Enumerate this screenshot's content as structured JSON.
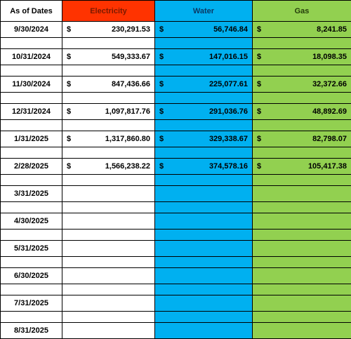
{
  "headers": {
    "date": "As of Dates",
    "electricity": "Electricity",
    "water": "Water",
    "gas": "Gas"
  },
  "currency_symbol": "$",
  "rows": [
    {
      "date": "9/30/2024",
      "electricity": "230,291.53",
      "water": "56,746.84",
      "gas": "8,241.85"
    },
    {
      "date": "10/31/2024",
      "electricity": "549,333.67",
      "water": "147,016.15",
      "gas": "18,098.35"
    },
    {
      "date": "11/30/2024",
      "electricity": "847,436.66",
      "water": "225,077.61",
      "gas": "32,372.66"
    },
    {
      "date": "12/31/2024",
      "electricity": "1,097,817.76",
      "water": "291,036.76",
      "gas": "48,892.69"
    },
    {
      "date": "1/31/2025",
      "electricity": "1,317,860.80",
      "water": "329,338.67",
      "gas": "82,798.07"
    },
    {
      "date": "2/28/2025",
      "electricity": "1,566,238.22",
      "water": "374,578.16",
      "gas": "105,417.38"
    },
    {
      "date": "3/31/2025",
      "electricity": "",
      "water": "",
      "gas": ""
    },
    {
      "date": "4/30/2025",
      "electricity": "",
      "water": "",
      "gas": ""
    },
    {
      "date": "5/31/2025",
      "electricity": "",
      "water": "",
      "gas": ""
    },
    {
      "date": "6/30/2025",
      "electricity": "",
      "water": "",
      "gas": ""
    },
    {
      "date": "7/31/2025",
      "electricity": "",
      "water": "",
      "gas": ""
    },
    {
      "date": "8/31/2025",
      "electricity": "",
      "water": "",
      "gas": ""
    }
  ],
  "colors": {
    "electricity": "#ff3300",
    "water": "#00b0f0",
    "gas": "#92d050"
  }
}
